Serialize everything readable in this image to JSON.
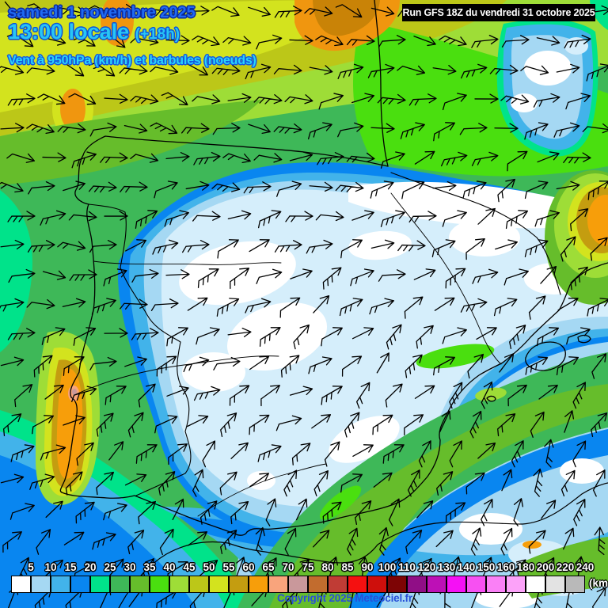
{
  "header": {
    "date": "samedi 1 novembre 2025",
    "time": "13:00 locale",
    "offset": "(+18h)",
    "subtitle": "Vent à 950hPa (km/h) et barbules (noeuds)"
  },
  "run_box": {
    "text": "Run GFS 18Z du vendredi 31 octobre 2025",
    "bg": "#000000",
    "fg": "#ffffff"
  },
  "footer": {
    "copyright": "Copyright 2025 Meteociel.fr"
  },
  "legend": {
    "unit": "(km/h)",
    "stops": [
      {
        "value": 5,
        "color": "#ffffff"
      },
      {
        "value": 10,
        "color": "#a5d8f3"
      },
      {
        "value": 15,
        "color": "#42b3ea"
      },
      {
        "value": 20,
        "color": "#0986f0"
      },
      {
        "value": 25,
        "color": "#00e38a"
      },
      {
        "value": 30,
        "color": "#3eb858"
      },
      {
        "value": 35,
        "color": "#66bd2b"
      },
      {
        "value": 40,
        "color": "#4adf0f"
      },
      {
        "value": 45,
        "color": "#9edd37"
      },
      {
        "value": 50,
        "color": "#bcc718"
      },
      {
        "value": 55,
        "color": "#d3e31e"
      },
      {
        "value": 60,
        "color": "#c49d10"
      },
      {
        "value": 65,
        "color": "#f79e0a"
      },
      {
        "value": 70,
        "color": "#f9a47c"
      },
      {
        "value": 75,
        "color": "#c9989b"
      },
      {
        "value": 80,
        "color": "#c26c2e"
      },
      {
        "value": 85,
        "color": "#c03c35"
      },
      {
        "value": 90,
        "color": "#f51010"
      },
      {
        "value": 100,
        "color": "#ce0f0c"
      },
      {
        "value": 110,
        "color": "#7d0405"
      },
      {
        "value": 120,
        "color": "#900e86"
      },
      {
        "value": 130,
        "color": "#bd10b6"
      },
      {
        "value": 140,
        "color": "#f510f5"
      },
      {
        "value": 150,
        "color": "#f750f2"
      },
      {
        "value": 160,
        "color": "#fa80f6"
      },
      {
        "value": 180,
        "color": "#fca2f9"
      },
      {
        "value": 200,
        "color": "#ffffff"
      },
      {
        "value": 220,
        "color": "#e3e3e3"
      },
      {
        "value": 240,
        "color": "#b9b9b9"
      }
    ]
  }
}
